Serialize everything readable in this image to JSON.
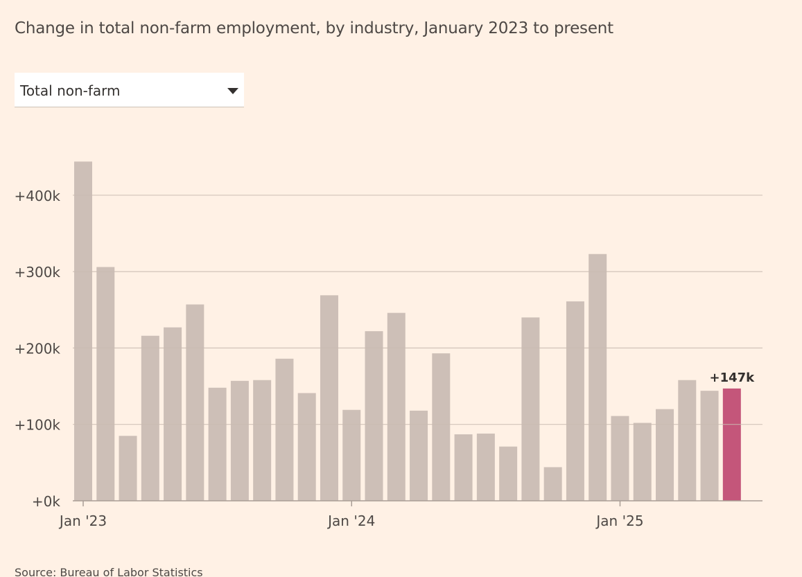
{
  "header": {
    "title": "Change in total non-farm employment, by industry, January 2023 to present"
  },
  "selector": {
    "selected": "Total non-farm",
    "icon": "chevron-down-icon"
  },
  "footer": {
    "source": "Source: Bureau of Labor Statistics"
  },
  "colors": {
    "background": "#fff1e5",
    "bar": "#cdbfb7",
    "highlight": "#c4567a",
    "grid": "#c9bbb1",
    "text": "#4d4845"
  },
  "chart_data": {
    "type": "bar",
    "title": "",
    "xlabel": "",
    "ylabel": "",
    "ylim": [
      0,
      450
    ],
    "unit": "thousands",
    "y_ticks": [
      {
        "value": 0,
        "label": "+0k"
      },
      {
        "value": 100,
        "label": "+100k"
      },
      {
        "value": 200,
        "label": "+200k"
      },
      {
        "value": 300,
        "label": "+300k"
      },
      {
        "value": 400,
        "label": "+400k"
      }
    ],
    "x_ticks": [
      {
        "index": 0,
        "label": "Jan '23"
      },
      {
        "index": 12,
        "label": "Jan '24"
      },
      {
        "index": 24,
        "label": "Jan '25"
      }
    ],
    "categories": [
      "2023-01",
      "2023-02",
      "2023-03",
      "2023-04",
      "2023-05",
      "2023-06",
      "2023-07",
      "2023-08",
      "2023-09",
      "2023-10",
      "2023-11",
      "2023-12",
      "2024-01",
      "2024-02",
      "2024-03",
      "2024-04",
      "2024-05",
      "2024-06",
      "2024-07",
      "2024-08",
      "2024-09",
      "2024-10",
      "2024-11",
      "2024-12",
      "2025-01",
      "2025-02",
      "2025-03",
      "2025-04",
      "2025-05",
      "2025-06"
    ],
    "values": [
      444,
      306,
      85,
      216,
      227,
      257,
      148,
      157,
      158,
      186,
      141,
      269,
      119,
      222,
      246,
      118,
      193,
      87,
      88,
      71,
      240,
      44,
      261,
      323,
      111,
      102,
      120,
      158,
      144,
      147
    ],
    "highlight_index": 29,
    "annotations": [
      {
        "index": 29,
        "label": "+147k"
      }
    ],
    "grid": true,
    "legend": "none"
  }
}
